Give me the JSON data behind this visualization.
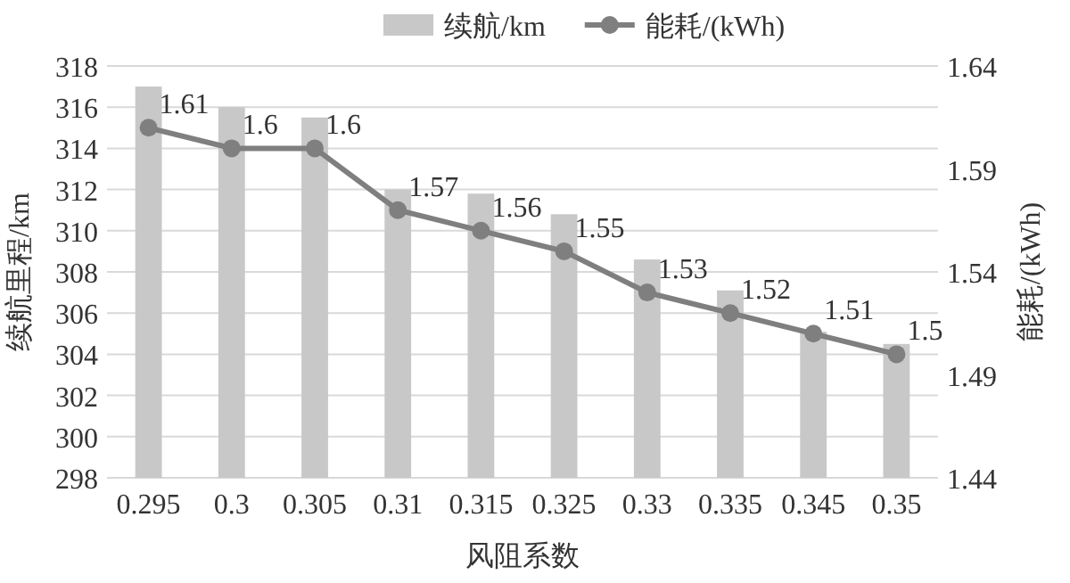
{
  "chart_data": {
    "type": "bar",
    "xlabel": "风阻系数",
    "ylabel": "续航里程/km",
    "y2label": "能耗/(kWh)",
    "categories": [
      "0.295",
      "0.3",
      "0.305",
      "0.31",
      "0.315",
      "0.325",
      "0.33",
      "0.335",
      "0.345",
      "0.35"
    ],
    "series": [
      {
        "name": "续航/km",
        "color": "#c8c8c8",
        "values": [
          317,
          316,
          315.5,
          312,
          311.8,
          310.8,
          308.6,
          307.1,
          305.1,
          304.5
        ]
      },
      {
        "name": "能耗/(kWh)",
        "type": "line",
        "axis": "y2",
        "color": "#7f7f7f",
        "marker": "circle",
        "data_labels": true,
        "values": [
          1.61,
          1.6,
          1.6,
          1.57,
          1.56,
          1.55,
          1.53,
          1.52,
          1.51,
          1.5
        ]
      }
    ],
    "ylim": [
      298,
      318
    ],
    "yticks": [
      298,
      300,
      302,
      304,
      306,
      308,
      310,
      312,
      314,
      316,
      318
    ],
    "y2lim": [
      1.44,
      1.64
    ],
    "y2ticks": [
      1.44,
      1.49,
      1.54,
      1.59,
      1.64
    ],
    "grid": "y",
    "legend": "top"
  }
}
